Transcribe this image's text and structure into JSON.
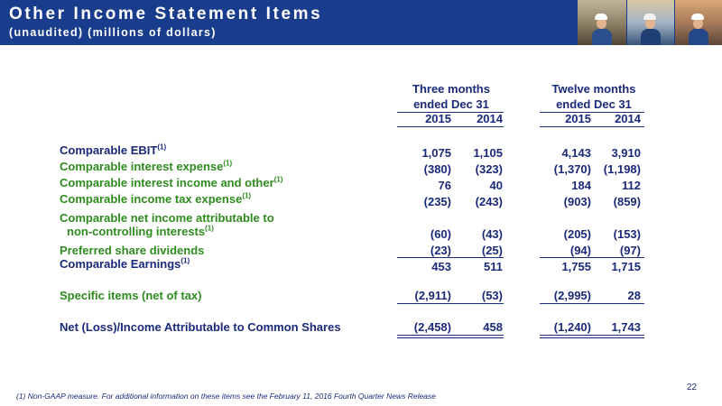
{
  "header": {
    "title": "Other Income Statement Items",
    "subtitle": "(unaudited) (millions of dollars)"
  },
  "column_groups": [
    {
      "label_line1": "Three months",
      "label_line2": "ended Dec 31",
      "years": [
        "2015",
        "2014"
      ]
    },
    {
      "label_line1": "Twelve months",
      "label_line2": "ended Dec 31",
      "years": [
        "2015",
        "2014"
      ]
    }
  ],
  "rows": [
    {
      "label": "Comparable EBIT",
      "note": "(1)",
      "color": "#1a2a7a",
      "values": [
        "1,075",
        "1,105",
        "4,143",
        "3,910"
      ]
    },
    {
      "label": "Comparable interest expense",
      "note": "(1)",
      "color": "#2e8b1e",
      "values": [
        "(380)",
        "(323)",
        "(1,370)",
        "(1,198)"
      ]
    },
    {
      "label": "Comparable interest income and other",
      "note": "(1)",
      "color": "#2e8b1e",
      "values": [
        "76",
        "40",
        "184",
        "112"
      ]
    },
    {
      "label": "Comparable income tax expense",
      "note": "(1)",
      "color": "#2e8b1e",
      "values": [
        "(235)",
        "(243)",
        "(903)",
        "(859)"
      ]
    },
    {
      "label": "Comparable net income attributable to",
      "note": "",
      "color": "#2e8b1e",
      "values": [
        "",
        "",
        "",
        ""
      ]
    },
    {
      "label": "non-controlling interests",
      "note": "(1)",
      "color": "#2e8b1e",
      "values": [
        "(60)",
        "(43)",
        "(205)",
        "(153)"
      ]
    },
    {
      "label": "Preferred share dividends",
      "note": "",
      "color": "#2e8b1e",
      "values": [
        "(23)",
        "(25)",
        "(94)",
        "(97)"
      ]
    },
    {
      "label": "Comparable Earnings",
      "note": "(1)",
      "color": "#1a2a7a",
      "values": [
        "453",
        "511",
        "1,755",
        "1,715"
      ]
    },
    {
      "label": "Specific items (net of tax)",
      "note": "",
      "color": "#2e8b1e",
      "values": [
        "(2,911)",
        "(53)",
        "(2,995)",
        "28"
      ]
    },
    {
      "label": "Net (Loss)/Income Attributable to Common Shares",
      "note": "",
      "color": "#1a2a7a",
      "values": [
        "(2,458)",
        "458",
        "(1,240)",
        "1,743"
      ]
    }
  ],
  "footnote": "(1) Non-GAAP measure.  For additional information on these items see the February 11, 2016 Fourth Quarter News Release",
  "page_number": "22",
  "colors": {
    "header_bg": "#1a3c8c",
    "navy": "#1a2a7a",
    "green": "#2e8b1e"
  }
}
